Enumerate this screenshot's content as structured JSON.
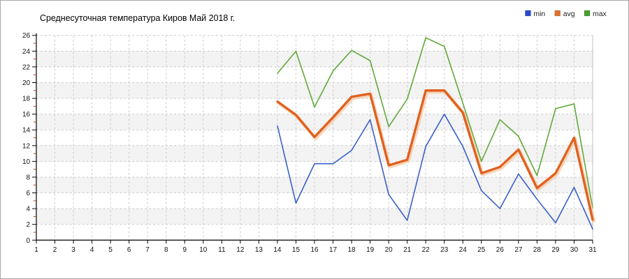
{
  "title": "Среднесуточная температура Киров  Май 2018 г.",
  "legend": {
    "position": "top-right",
    "items": [
      {
        "label": "min",
        "color": "#2a46d0"
      },
      {
        "label": "avg",
        "color": "#e0702a"
      },
      {
        "label": "max",
        "color": "#4a9e2c"
      }
    ]
  },
  "colors": {
    "grid": "#cccccc",
    "axis": "#000000",
    "minor_tick": "#bb3322",
    "band_gray": "#f3f3f3",
    "plot_right_border": "#c0c0c0"
  },
  "chart_data": {
    "type": "line",
    "title": "Среднесуточная температура Киров  Май 2018 г.",
    "xlabel": "",
    "ylabel": "",
    "x_range": [
      1,
      31
    ],
    "y_range": [
      0,
      26
    ],
    "y_step": 2,
    "grid": true,
    "background_bands": true,
    "legend_position": "top-right",
    "x_ticks": [
      1,
      2,
      3,
      4,
      5,
      6,
      7,
      8,
      9,
      10,
      11,
      12,
      13,
      14,
      15,
      16,
      17,
      18,
      19,
      20,
      21,
      22,
      23,
      24,
      25,
      26,
      27,
      28,
      29,
      30,
      31
    ],
    "y_ticks": [
      0,
      2,
      4,
      6,
      8,
      10,
      12,
      14,
      16,
      18,
      20,
      22,
      24,
      26
    ],
    "x": [
      14,
      15,
      16,
      17,
      18,
      19,
      20,
      21,
      22,
      23,
      24,
      25,
      26,
      27,
      28,
      29,
      30,
      31
    ],
    "series": [
      {
        "name": "max",
        "color": "#61a839",
        "width": 1.6,
        "values": [
          21.2,
          24.0,
          16.9,
          21.5,
          24.1,
          22.8,
          14.4,
          17.9,
          25.7,
          24.6,
          17.4,
          10.0,
          15.3,
          13.2,
          8.2,
          16.7,
          17.3,
          4.1
        ]
      },
      {
        "name": "min",
        "color": "#3a5fc8",
        "width": 1.6,
        "values": [
          14.5,
          4.7,
          9.7,
          9.7,
          11.4,
          15.3,
          5.8,
          2.5,
          11.9,
          16.0,
          11.9,
          6.3,
          4.0,
          8.4,
          5.2,
          2.2,
          6.7,
          1.4
        ]
      },
      {
        "name": "avg",
        "color": "#e0611f",
        "width": 3.4,
        "halo": "#f5c9a4",
        "values": [
          17.6,
          15.9,
          13.1,
          15.6,
          18.2,
          18.6,
          9.5,
          10.2,
          19.0,
          19.0,
          16.2,
          8.5,
          9.3,
          11.5,
          6.6,
          8.5,
          13.0,
          2.6
        ]
      }
    ]
  }
}
